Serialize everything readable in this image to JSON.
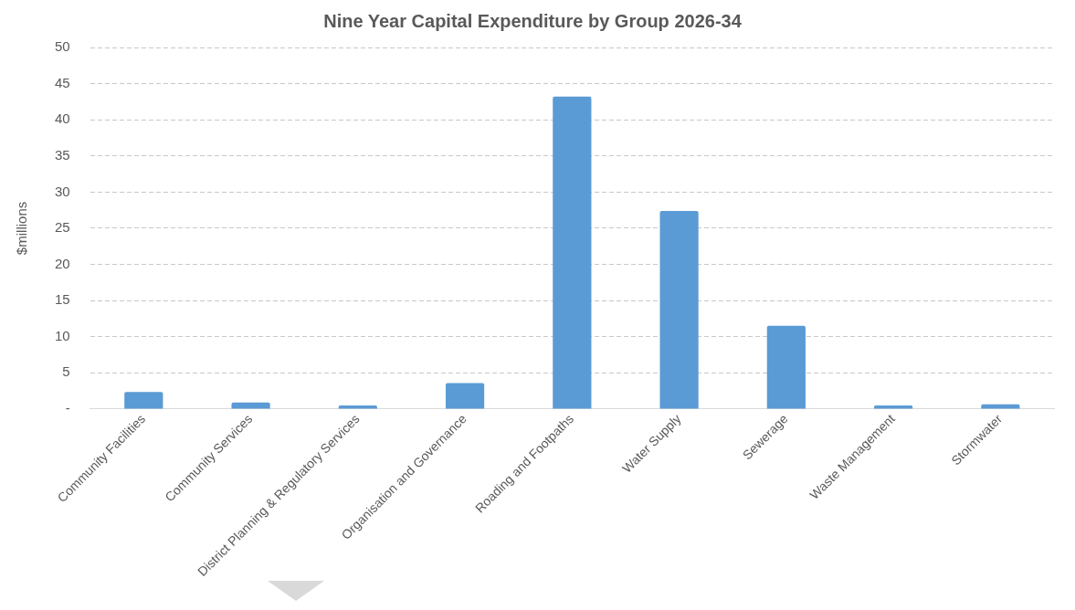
{
  "chart_data": {
    "type": "bar",
    "title": "Nine Year Capital Expenditure by Group 2026-34",
    "ylabel": "$millions",
    "categories": [
      "Community Facilities",
      "Community Services",
      "District Planning & Regulatory Services",
      "Organisation and Governance",
      "Roading and Footpaths",
      "Water Supply",
      "Sewerage",
      "Waste Management",
      "Stormwater"
    ],
    "values": [
      2.35,
      0.9,
      0.5,
      3.6,
      43.2,
      27.4,
      11.5,
      0.5,
      0.65
    ],
    "color": "#5b9bd5",
    "ylim": [
      0,
      50
    ],
    "yticks": [
      {
        "value": 0,
        "label": "-"
      },
      5,
      10,
      15,
      20,
      25,
      30,
      35,
      40,
      45,
      50
    ],
    "grid": "y"
  }
}
